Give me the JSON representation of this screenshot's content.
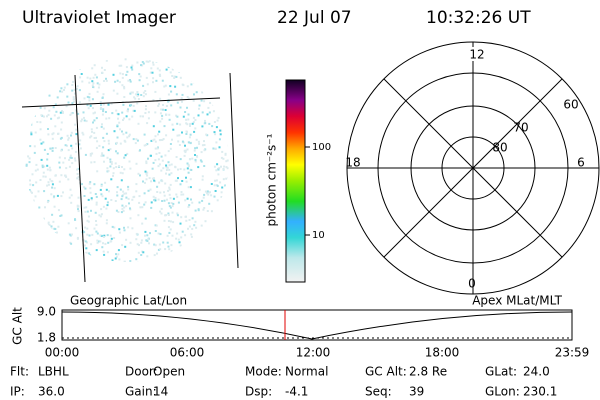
{
  "header": {
    "title": "Ultraviolet Imager",
    "date": "22 Jul 07",
    "time": "10:32:26 UT"
  },
  "colorbar": {
    "label": "photon cm⁻²s⁻¹",
    "ticks": [
      "100",
      "10"
    ]
  },
  "polar": {
    "mlt_labels": [
      "12",
      "18",
      "6",
      "0"
    ],
    "lat_labels": [
      "60",
      "70",
      "80"
    ]
  },
  "altitude_plot": {
    "y_label": "GC Alt",
    "y_ticks": [
      "9.0",
      "1.8"
    ],
    "left_title": "Geographic Lat/Lon",
    "right_title": "Apex MLat/MLT",
    "x_ticks": [
      "00:00",
      "06:00",
      "12:00",
      "18:00",
      "23:59"
    ]
  },
  "info": [
    {
      "label": "Flt:",
      "value": "LBHL"
    },
    {
      "label": "IP:",
      "value": "36.0"
    },
    {
      "label": "Door:",
      "value": "Open"
    },
    {
      "label": "Gain:",
      "value": "14"
    },
    {
      "label": "Mode:",
      "value": "Normal"
    },
    {
      "label": "Dsp:",
      "value": "-4.1"
    },
    {
      "label": "GC Alt:",
      "value": "2.8 Re"
    },
    {
      "label": "Seq:",
      "value": "39"
    },
    {
      "label": "GLat:",
      "value": "24.0"
    },
    {
      "label": "GLon:",
      "value": "230.1"
    }
  ]
}
